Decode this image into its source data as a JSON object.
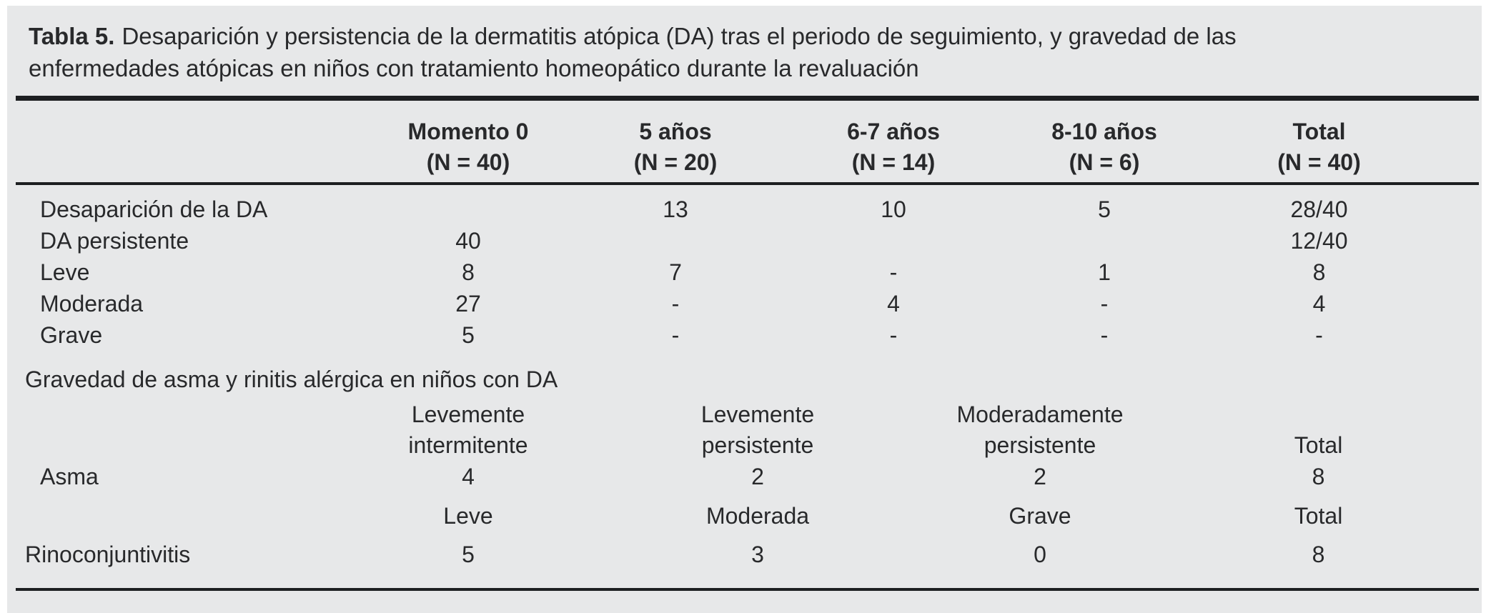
{
  "caption": {
    "label": "Tabla 5.",
    "line1": "Desaparición y persistencia de la dermatitis atópica (DA) tras el periodo de seguimiento, y gravedad de las",
    "line2": "enfermedades atópicas en niños con tratamiento homeopático durante la revaluación"
  },
  "colors": {
    "panel_background": "#e7e8e9",
    "text": "#28292b",
    "rule": "#1d1f21"
  },
  "main_table": {
    "columns": [
      {
        "period": "Momento 0",
        "n": "(N = 40)"
      },
      {
        "period": "5 años",
        "n": "(N = 20)"
      },
      {
        "period": "6-7 años",
        "n": "(N = 14)"
      },
      {
        "period": "8-10 años",
        "n": "(N = 6)"
      },
      {
        "period": "Total",
        "n": "(N = 40)"
      }
    ],
    "rows": [
      {
        "label": "Desaparición de la DA",
        "values": [
          "",
          "13",
          "10",
          "5",
          "28/40"
        ]
      },
      {
        "label": "DA persistente",
        "values": [
          "40",
          "",
          "",
          "",
          "12/40"
        ]
      },
      {
        "label": "Leve",
        "values": [
          "8",
          "7",
          "-",
          "1",
          "8"
        ]
      },
      {
        "label": "Moderada",
        "values": [
          "27",
          "-",
          "4",
          "-",
          "4"
        ]
      },
      {
        "label": "Grave",
        "values": [
          "5",
          "-",
          "-",
          "-",
          "-"
        ]
      }
    ]
  },
  "severity_section": {
    "title": "Gravedad de asma y rinitis alérgica en niños con DA",
    "asthma_header": [
      {
        "line1": "Levemente",
        "line2": "intermitente"
      },
      {
        "line1": "Levemente",
        "line2": "persistente"
      },
      {
        "line1": "Moderadamente",
        "line2": "persistente"
      },
      {
        "line1": "",
        "line2": "Total"
      }
    ],
    "asthma_row": {
      "label": "Asma",
      "values": [
        "4",
        "2",
        "2",
        "8"
      ]
    },
    "rhino_header": [
      "Leve",
      "Moderada",
      "Grave",
      "Total"
    ],
    "rhino_row": {
      "label": "Rinoconjuntivitis",
      "values": [
        "5",
        "3",
        "0",
        "8"
      ]
    }
  }
}
